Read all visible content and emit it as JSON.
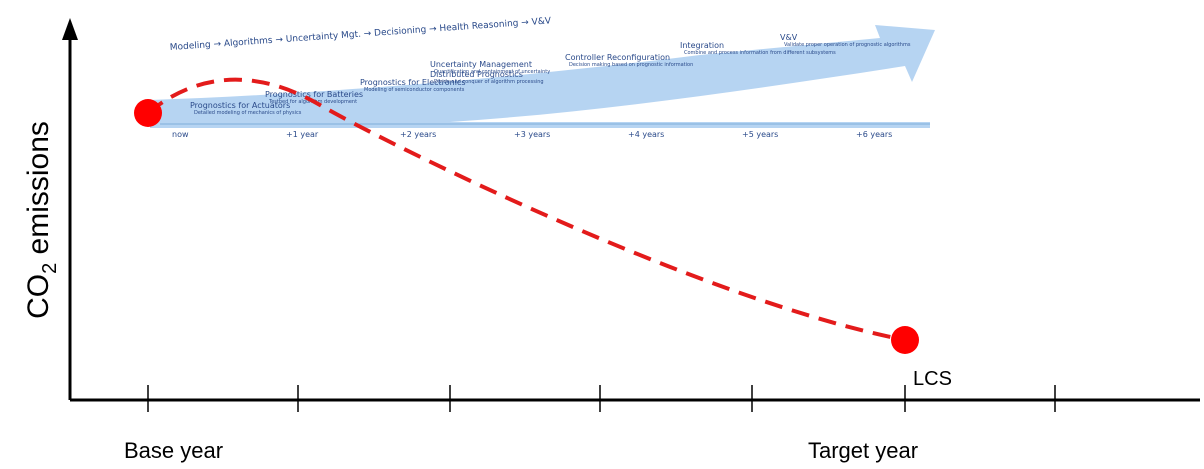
{
  "axis": {
    "y_label": [
      "CO",
      "2",
      " emissions"
    ],
    "x_labels": [
      "Base year",
      "Target year"
    ]
  },
  "end_label": "LCS",
  "roadmap": {
    "flow": "Modeling → Algorithms → Uncertainty Mgt. → Decisioning → Health Reasoning → V&V",
    "timeline": [
      "now",
      "+1 year",
      "+2 years",
      "+3 years",
      "+4 years",
      "+5 years",
      "+6 years"
    ],
    "items": [
      {
        "title": "Prognostics for Actuators",
        "desc": "Detailed modeling of mechanics of physics"
      },
      {
        "title": "Prognostics for Batteries",
        "desc": "Testbed for algorithm development"
      },
      {
        "title": "Prognostics for Electronics",
        "desc": "Modeling of semiconductor components"
      },
      {
        "title": "Distributed Prognostics",
        "desc": "Divide and conquer of algorithm processing"
      },
      {
        "title": "Uncertainty Management",
        "desc": "Quantification and containment of uncertainty"
      },
      {
        "title": "Controller Reconfiguration",
        "desc": "Decision making based on prognostic information"
      },
      {
        "title": "Integration",
        "desc": "Combine and process information from different subsystems"
      },
      {
        "title": "V&V",
        "desc": "Validate proper operation of prognostic algorithms"
      }
    ]
  }
}
